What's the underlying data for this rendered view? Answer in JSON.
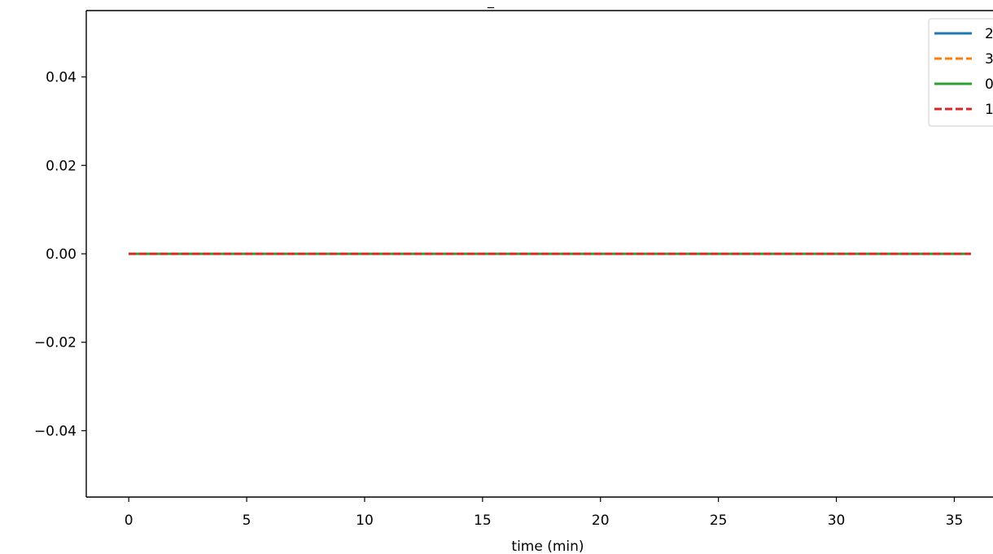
{
  "chart_data": {
    "type": "line",
    "title": "_",
    "xlabel": "time (min)",
    "ylabel": "",
    "xlim": [
      -1.8,
      37.4
    ],
    "ylim": [
      -0.055,
      0.055
    ],
    "xticks": [
      0,
      5,
      10,
      15,
      20,
      25,
      30,
      35
    ],
    "xtick_labels": [
      "0",
      "5",
      "10",
      "15",
      "20",
      "25",
      "30",
      "35"
    ],
    "yticks": [
      -0.04,
      -0.02,
      0.0,
      0.02,
      0.04
    ],
    "ytick_labels": [
      "−0.04",
      "−0.02",
      "0.00",
      "0.02",
      "0.04"
    ],
    "grid": false,
    "legend_position": "top-right",
    "series": [
      {
        "name": "2",
        "color": "#1f77b4",
        "style": "solid",
        "x": [
          0,
          35.7
        ],
        "y": [
          0,
          0
        ]
      },
      {
        "name": "3",
        "color": "#ff7f0e",
        "style": "dashed",
        "x": [
          0,
          35.7
        ],
        "y": [
          0,
          0
        ]
      },
      {
        "name": "0",
        "color": "#2ca02c",
        "style": "solid",
        "x": [
          0,
          35.7
        ],
        "y": [
          0,
          0
        ]
      },
      {
        "name": "1",
        "color": "#d62728",
        "style": "dashed",
        "x": [
          0,
          35.7
        ],
        "y": [
          0,
          0
        ]
      }
    ]
  }
}
